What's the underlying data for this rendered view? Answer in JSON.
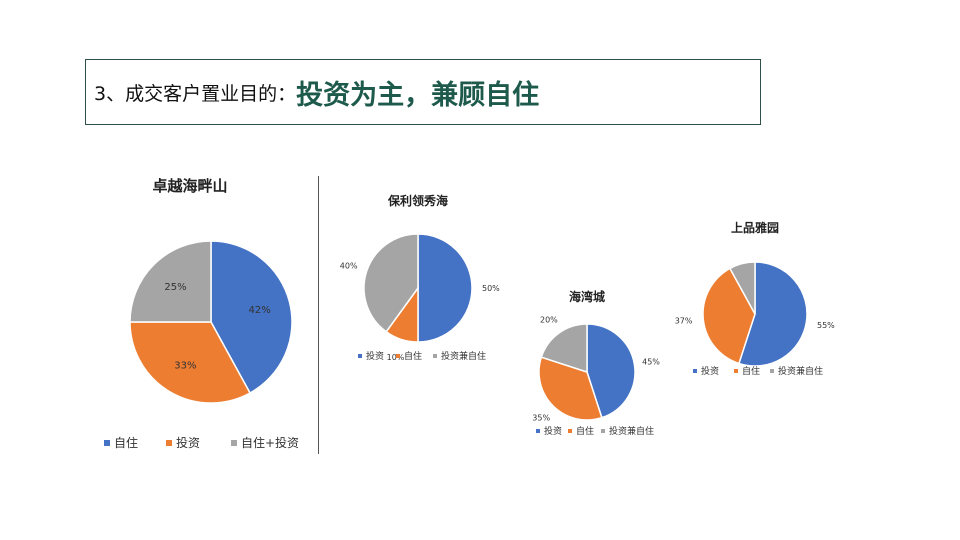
{
  "heading": {
    "prefix": "3、成交客户置业目的：",
    "emphasis": "投资为主，兼顾自住"
  },
  "colors": {
    "blue": "#4472c4",
    "orange": "#ed7d31",
    "gray": "#a5a5a5"
  },
  "chart_data": [
    {
      "type": "pie",
      "title": "卓越海畔山",
      "categories": [
        "自住",
        "投资",
        "自住+投资"
      ],
      "values": [
        42,
        33,
        25
      ],
      "labels": [
        "42%",
        "33%",
        "25%"
      ],
      "legend": "bottom"
    },
    {
      "type": "pie",
      "title": "保利领秀海",
      "categories": [
        "投资",
        "自住",
        "投资兼自住"
      ],
      "values": [
        50,
        10,
        40
      ],
      "labels": [
        "50%",
        "10%",
        "40%"
      ],
      "legend": "bottom"
    },
    {
      "type": "pie",
      "title": "海湾城",
      "categories": [
        "投资",
        "自住",
        "投资兼自住"
      ],
      "values": [
        45,
        35,
        20
      ],
      "labels": [
        "45%",
        "35%",
        "20%"
      ],
      "legend": "bottom"
    },
    {
      "type": "pie",
      "title": "上品雅园",
      "categories": [
        "投资",
        "自住",
        "投资兼自住"
      ],
      "values": [
        55,
        37,
        8
      ],
      "labels": [
        "55%",
        "37%",
        ""
      ],
      "legend": "bottom"
    }
  ]
}
